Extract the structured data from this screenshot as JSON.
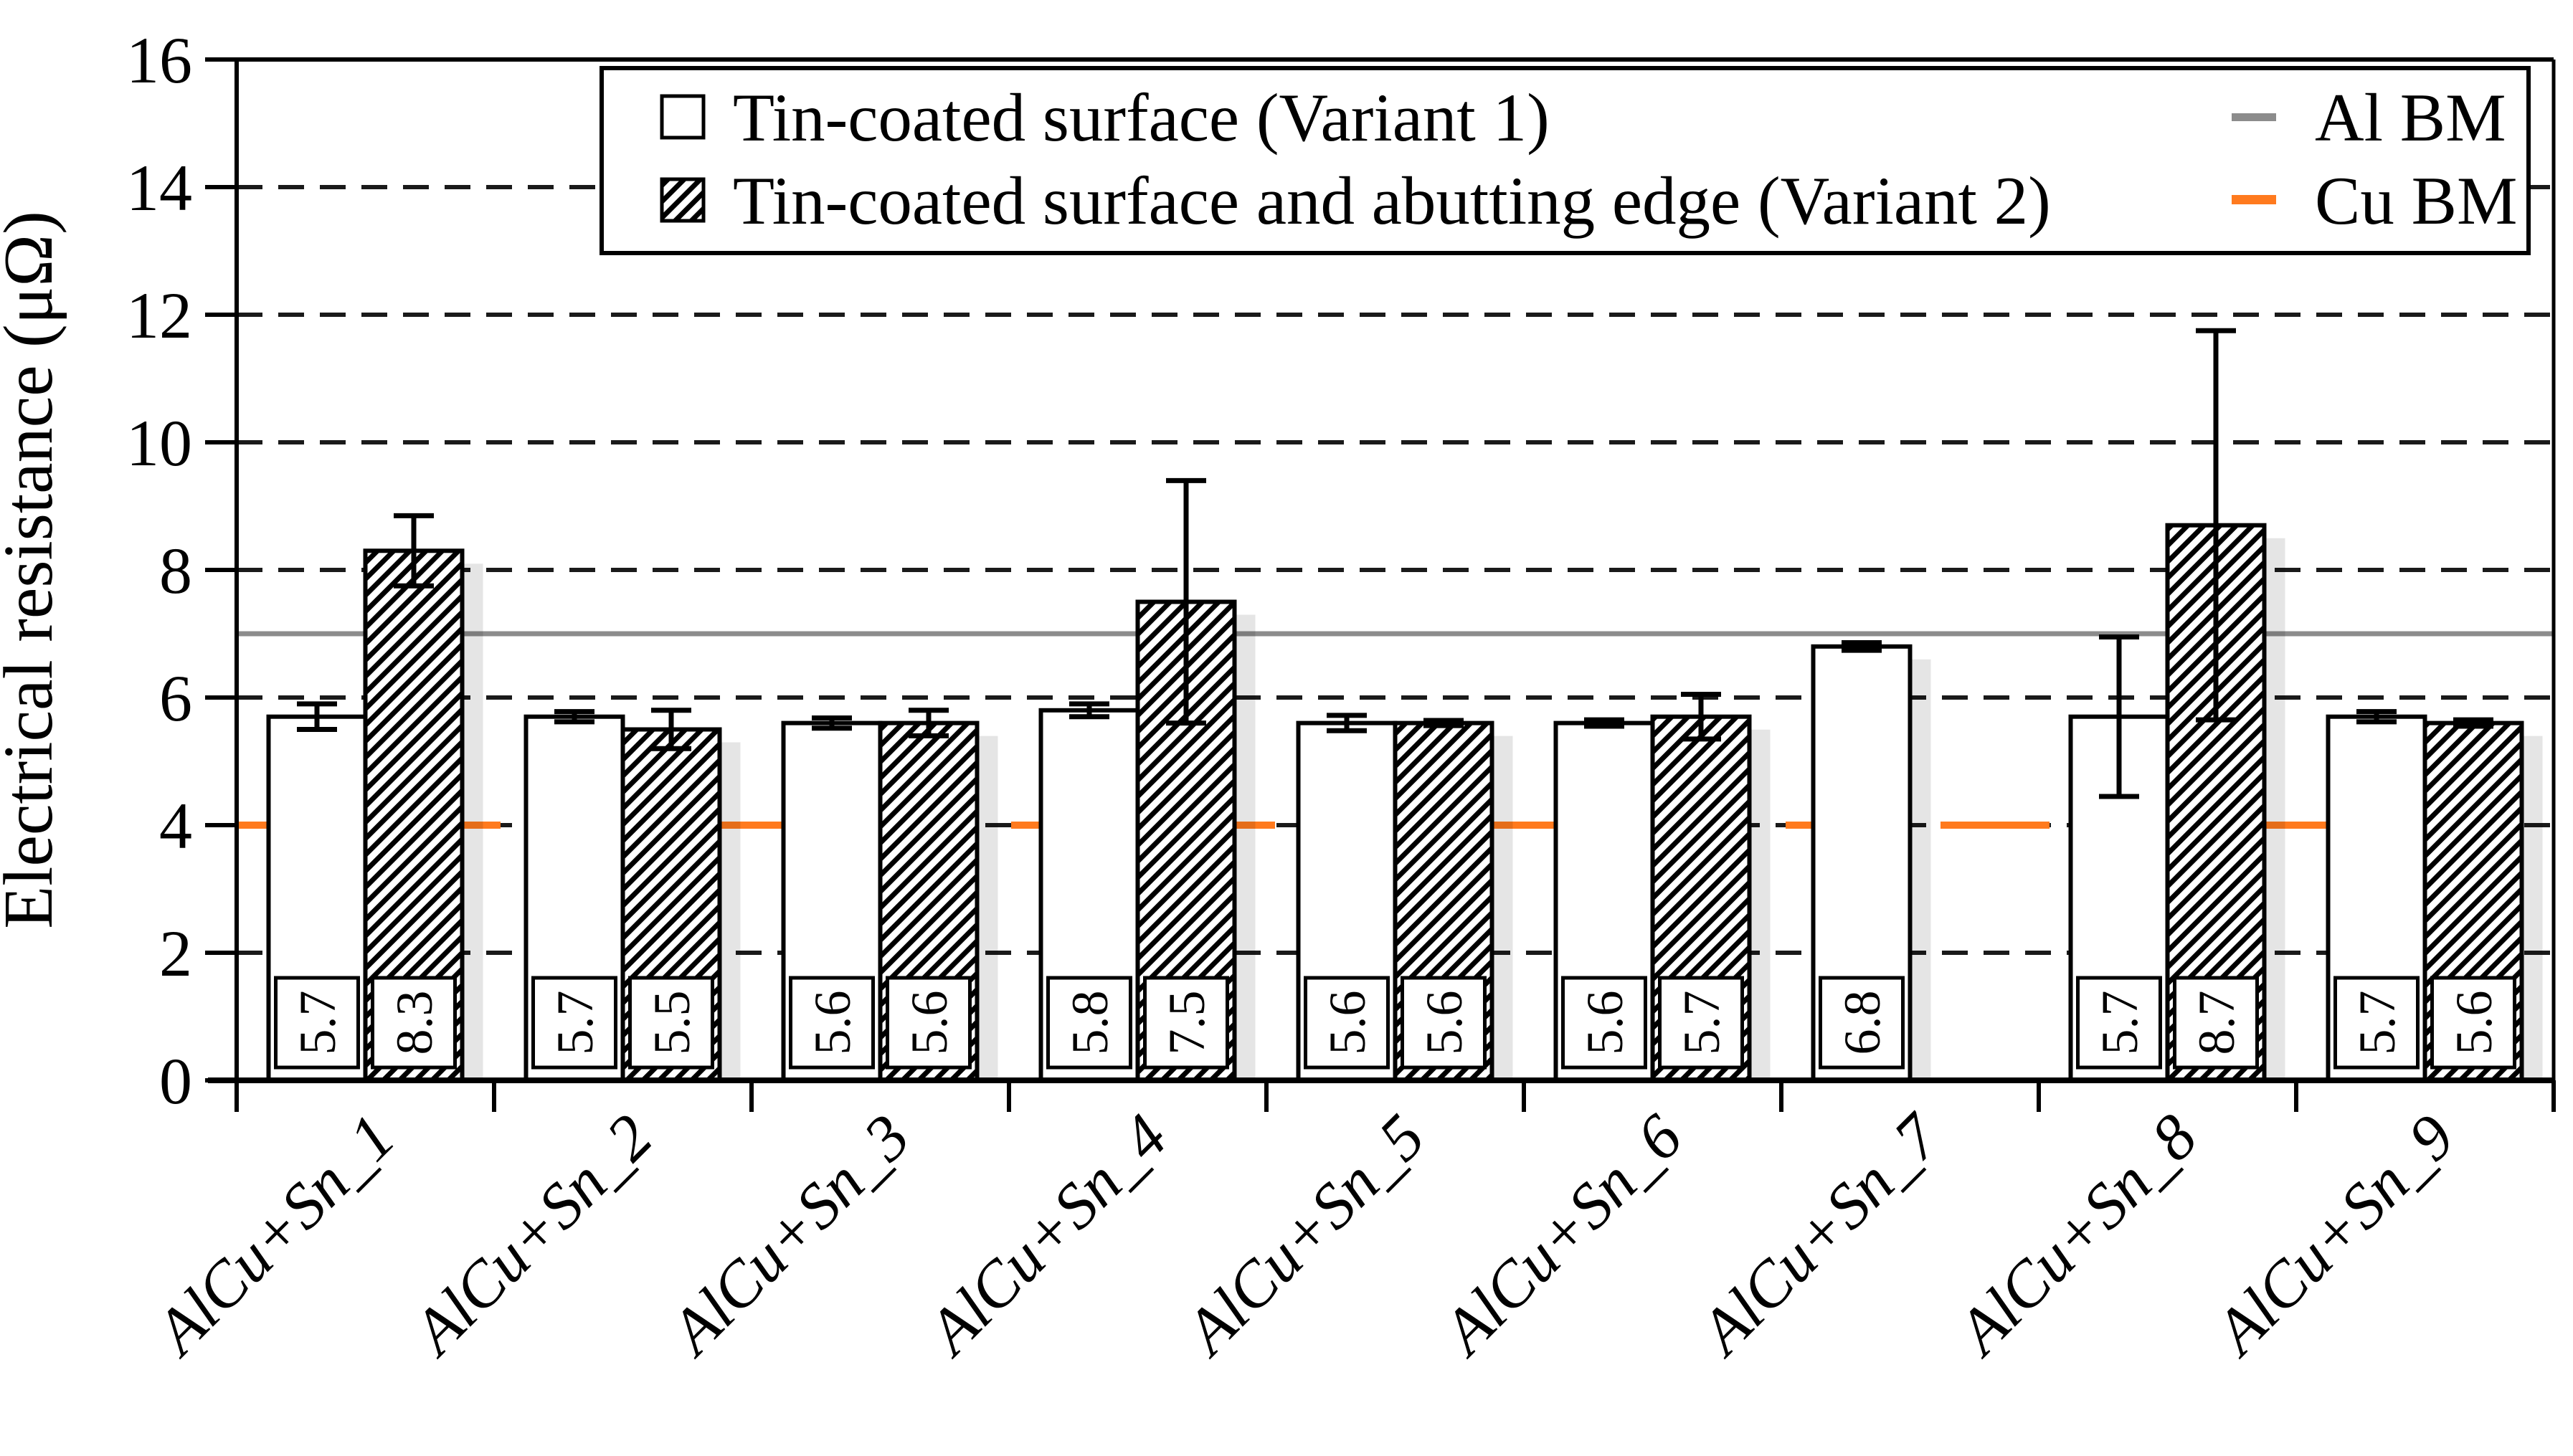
{
  "figure": {
    "type": "scientific bar chart",
    "background": "#ffffff"
  },
  "chart_data": {
    "type": "bar",
    "title": "",
    "xlabel": "",
    "ylabel": "Electrical resistance (μΩ)",
    "ylim": [
      0,
      16
    ],
    "yticks": [
      0,
      2,
      4,
      6,
      8,
      10,
      12,
      14,
      16
    ],
    "grid": "horizontal dashed lines at every 2 units, solid top border",
    "legend_position": "top, single wide box overlapping plot",
    "categories": [
      "AlCu+Sn_1",
      "AlCu+Sn_2",
      "AlCu+Sn_3",
      "AlCu+Sn_4",
      "AlCu+Sn_5",
      "AlCu+Sn_6",
      "AlCu+Sn_7",
      "AlCu+Sn_8",
      "AlCu+Sn_9"
    ],
    "series": [
      {
        "name": "Tin-coated surface (Variant 1)",
        "style": "white",
        "values": [
          5.7,
          5.7,
          5.6,
          5.8,
          5.6,
          5.6,
          6.8,
          5.7,
          5.7
        ],
        "errors": [
          0.2,
          0.08,
          0.08,
          0.1,
          0.12,
          0.05,
          0.06,
          1.25,
          0.08
        ],
        "labels": [
          "5.7",
          "5.7",
          "5.6",
          "5.8",
          "5.6",
          "5.6",
          "6.8",
          "5.7",
          "5.7"
        ]
      },
      {
        "name": "Tin-coated surface and abutting edge (Variant 2)",
        "style": "hatched",
        "values": [
          8.3,
          5.5,
          5.6,
          7.5,
          5.6,
          5.7,
          null,
          8.7,
          5.6
        ],
        "errors": [
          0.55,
          0.3,
          0.2,
          1.9,
          0.04,
          0.35,
          null,
          3.05,
          0.05
        ],
        "labels": [
          "8.3",
          "5.5",
          "5.6",
          "7.5",
          "5.6",
          "5.7",
          null,
          "8.7",
          "5.6"
        ]
      }
    ],
    "ref_lines": [
      {
        "label": "Al BM",
        "value": 7,
        "color": "#8c8c8c",
        "style": "solid"
      },
      {
        "label": "Cu BM",
        "value": 4,
        "color": "#ff7a1e",
        "style": "dashed"
      }
    ],
    "colors": {
      "bar_outline": "#000000",
      "bar_fill_variant1": "#ffffff",
      "bar_fill_variant2": "black-white 45deg hatch",
      "gridline": "#1a1a1a",
      "al_bm_line": "#8c8c8c",
      "cu_bm_line": "#ff7a1e"
    }
  }
}
